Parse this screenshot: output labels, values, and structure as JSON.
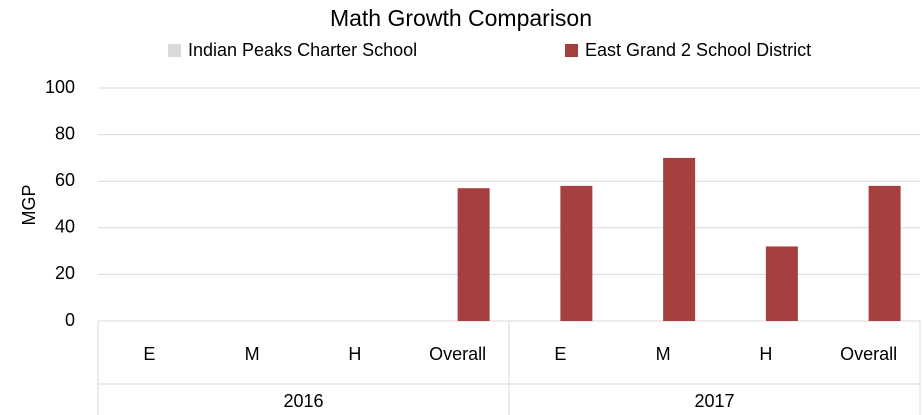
{
  "chart_data": {
    "type": "bar",
    "title": "Math Growth Comparison",
    "y_label": "MGP",
    "categories": [
      "E",
      "M",
      "H",
      "Overall",
      "E",
      "M",
      "H",
      "Overall"
    ],
    "groups": [
      "2016",
      "2017"
    ],
    "series": [
      {
        "name": "Indian Peaks Charter School",
        "color": "#d9d9d9",
        "values": [
          null,
          null,
          null,
          null,
          null,
          null,
          null,
          null
        ]
      },
      {
        "name": "East Grand 2 School District",
        "color": "#a5403f",
        "values": [
          null,
          null,
          null,
          57,
          58,
          70,
          32,
          58
        ]
      }
    ],
    "ylim": [
      0,
      100
    ],
    "yticks": [
      0,
      20,
      40,
      60,
      80,
      100
    ],
    "grid": true,
    "legend": "top"
  }
}
